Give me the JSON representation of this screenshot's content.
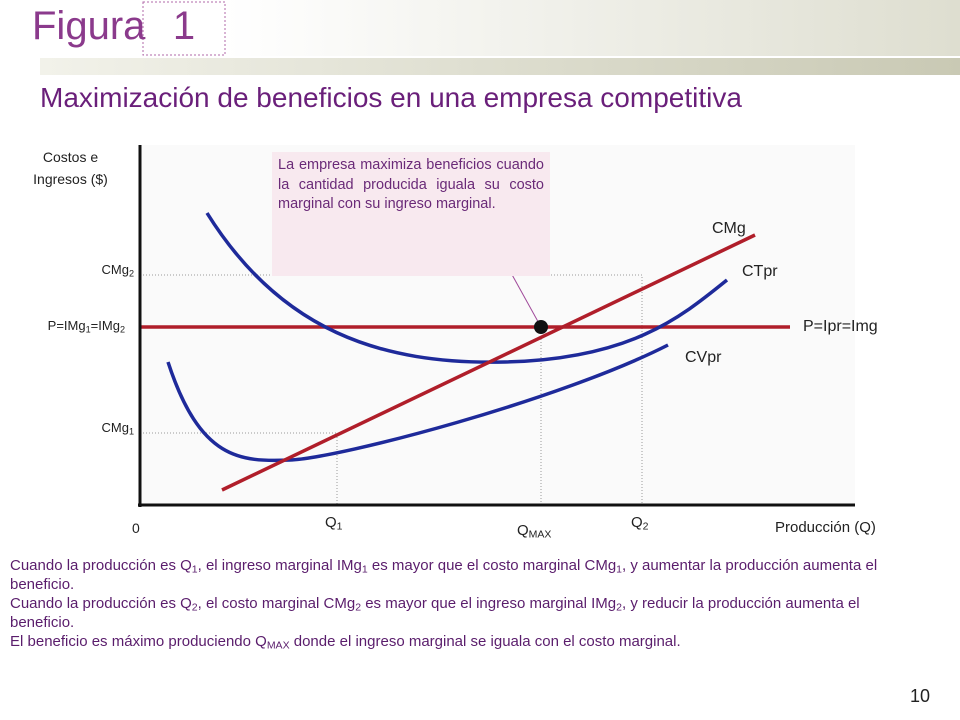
{
  "header": {
    "figure_label": "Figura",
    "figure_number": "1",
    "page_number": "10"
  },
  "title": "Maximización de beneficios en una empresa competitiva",
  "axes": {
    "y_label": [
      "Costos e",
      "Ingresos ($)"
    ],
    "x_label": "Producción (Q)",
    "origin": "0"
  },
  "y_labels": {
    "cmg2": [
      {
        "text": "CMg"
      },
      {
        "text": "2",
        "sub": true
      }
    ],
    "price": [
      {
        "text": "P=IMg"
      },
      {
        "text": "1",
        "sub": true
      },
      {
        "text": "=IMg"
      },
      {
        "text": "2",
        "sub": true
      }
    ],
    "cmg1": [
      {
        "text": "CMg"
      },
      {
        "text": "1",
        "sub": true
      }
    ]
  },
  "x_labels": {
    "q1": [
      {
        "text": "Q"
      },
      {
        "text": "1",
        "sub": true
      }
    ],
    "qmax": [
      {
        "text": "Q"
      },
      {
        "text": "MAX",
        "sub": true
      }
    ],
    "q2": [
      {
        "text": "Q"
      },
      {
        "text": "2",
        "sub": true
      }
    ]
  },
  "curve_labels": {
    "cmg": "CMg",
    "ctpr": "CTpr",
    "price": "P=Ipr=Img",
    "cvpr": "CVpr"
  },
  "callout": "La empresa maximiza beneficios cuando la cantidad producida iguala su costo marginal con su ingreso marginal.",
  "notes": [
    [
      {
        "text": "Cuando la producción es Q"
      },
      {
        "text": "1",
        "sub": true
      },
      {
        "text": ", el ingreso marginal IMg"
      },
      {
        "text": "1",
        "sub": true
      },
      {
        "text": " es mayor que el costo marginal CMg"
      },
      {
        "text": "1",
        "sub": true
      },
      {
        "text": ", y aumentar la producción aumenta el beneficio."
      }
    ],
    [
      {
        "text": "Cuando la producción es Q"
      },
      {
        "text": "2",
        "sub": true
      },
      {
        "text": ", el costo marginal CMg"
      },
      {
        "text": "2",
        "sub": true
      },
      {
        "text": " es mayor que el ingreso marginal IMg"
      },
      {
        "text": "2",
        "sub": true
      },
      {
        "text": ", y reducir la producción aumenta el beneficio."
      }
    ],
    [
      {
        "text": "El beneficio es máximo produciendo Q"
      },
      {
        "text": "MAX",
        "sub": true
      },
      {
        "text": " donde el ingreso marginal se iguala con el costo marginal."
      }
    ]
  ]
}
